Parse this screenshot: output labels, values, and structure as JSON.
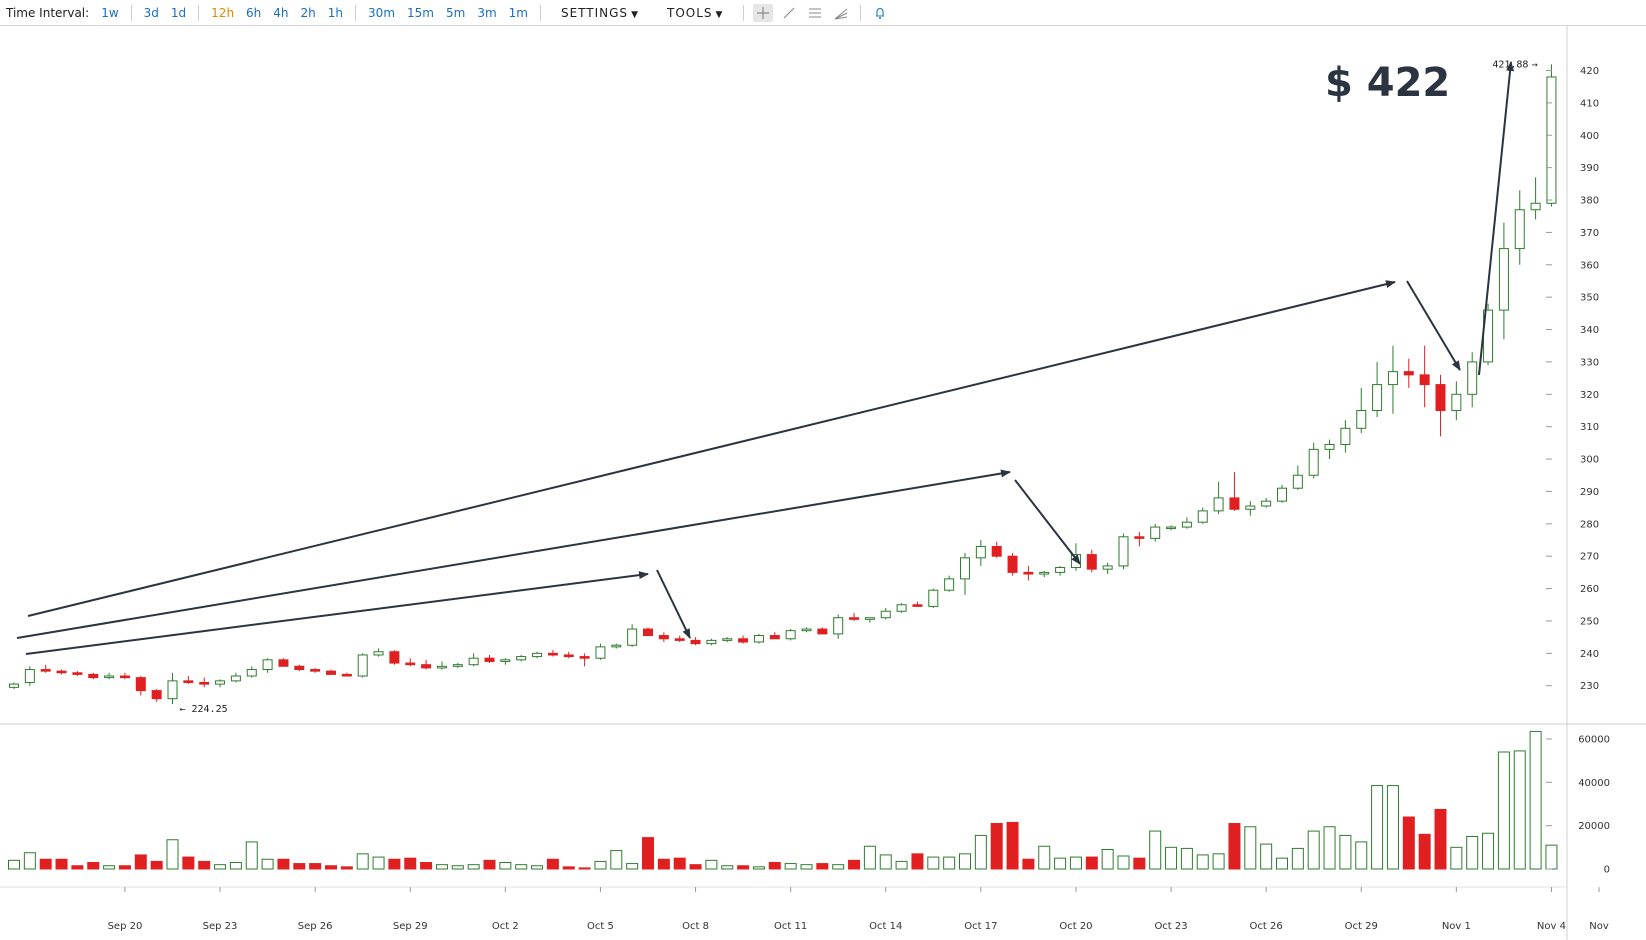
{
  "toolbar": {
    "interval_label": "Time Interval:",
    "intervals": [
      "1w",
      "3d",
      "1d",
      "12h",
      "6h",
      "4h",
      "2h",
      "1h",
      "30m",
      "15m",
      "5m",
      "3m",
      "1m"
    ],
    "active_interval": "12h",
    "settings_label": "SETTINGS",
    "tools_label": "TOOLS"
  },
  "colors": {
    "up": "#2e7d2e",
    "down": "#e02020",
    "arrow": "#2b3440",
    "link": "#1a6fbf",
    "active": "#e08a00"
  },
  "annotation": {
    "big_price": "$ 422"
  },
  "markers": {
    "high_label": "421.88",
    "low_label": "224.25"
  },
  "chart_data": {
    "type": "candlestick",
    "interval": "12h",
    "price_axis": {
      "min": 222,
      "max": 422,
      "ticks": [
        230,
        240,
        250,
        260,
        270,
        280,
        290,
        300,
        310,
        320,
        330,
        340,
        350,
        360,
        370,
        380,
        390,
        400,
        410,
        420
      ]
    },
    "volume_axis": {
      "min": 0,
      "max": 65000,
      "ticks": [
        0,
        20000,
        40000,
        60000
      ],
      "tick_labels": [
        "0",
        "20000",
        "40000",
        "60000"
      ]
    },
    "x_labels": [
      {
        "label": "Sep 20",
        "i": 7
      },
      {
        "label": "Sep 23",
        "i": 13
      },
      {
        "label": "Sep 26",
        "i": 19
      },
      {
        "label": "Sep 29",
        "i": 25
      },
      {
        "label": "Oct 2",
        "i": 31
      },
      {
        "label": "Oct 5",
        "i": 37
      },
      {
        "label": "Oct 8",
        "i": 43
      },
      {
        "label": "Oct 11",
        "i": 49
      },
      {
        "label": "Oct 14",
        "i": 55
      },
      {
        "label": "Oct 17",
        "i": 61
      },
      {
        "label": "Oct 20",
        "i": 67
      },
      {
        "label": "Oct 23",
        "i": 73
      },
      {
        "label": "Oct 26",
        "i": 79
      },
      {
        "label": "Oct 29",
        "i": 85
      },
      {
        "label": "Nov 1",
        "i": 91
      },
      {
        "label": "Nov 4",
        "i": 97
      },
      {
        "label": "Nov",
        "i": 100
      }
    ],
    "ohlc": [
      [
        229.5,
        231,
        229,
        230.5
      ],
      [
        231,
        236,
        230,
        235
      ],
      [
        235,
        236.5,
        234,
        234.5
      ],
      [
        234.5,
        235,
        233.5,
        234
      ],
      [
        234,
        234.5,
        233,
        233.5
      ],
      [
        233.5,
        234,
        232,
        232.5
      ],
      [
        232.5,
        234,
        232,
        233
      ],
      [
        233,
        234,
        232,
        232.5
      ],
      [
        232.5,
        233,
        227,
        228.5
      ],
      [
        228.5,
        229,
        225,
        226
      ],
      [
        226,
        234,
        224.3,
        231.5
      ],
      [
        231.5,
        233,
        230.5,
        231
      ],
      [
        231,
        232.5,
        229.5,
        230.5
      ],
      [
        230.5,
        232,
        229.5,
        231.5
      ],
      [
        231.5,
        234,
        231,
        233
      ],
      [
        233,
        236,
        232.5,
        235
      ],
      [
        235,
        238.5,
        234,
        238
      ],
      [
        238,
        238.5,
        236,
        236
      ],
      [
        236,
        236.5,
        234.5,
        235
      ],
      [
        235,
        235.5,
        234,
        234.5
      ],
      [
        234.5,
        235,
        233.5,
        233.5
      ],
      [
        233.5,
        234,
        233,
        233
      ],
      [
        233,
        240,
        232.5,
        239.5
      ],
      [
        239.5,
        241.5,
        239,
        240.5
      ],
      [
        240.5,
        241,
        236.5,
        237
      ],
      [
        237,
        238.5,
        236,
        236.5
      ],
      [
        236.5,
        238,
        235,
        235.5
      ],
      [
        235.5,
        237.5,
        235,
        236
      ],
      [
        236,
        237,
        235.5,
        236.5
      ],
      [
        236.5,
        240,
        236,
        238.5
      ],
      [
        238.5,
        239.5,
        237,
        237.5
      ],
      [
        237.5,
        238.5,
        236.5,
        238
      ],
      [
        238,
        239.5,
        237.5,
        239
      ],
      [
        239,
        240.5,
        238.5,
        240
      ],
      [
        240,
        241,
        239,
        239.5
      ],
      [
        239.5,
        240.5,
        238.5,
        239
      ],
      [
        239,
        240,
        236,
        238.5
      ],
      [
        238.5,
        243,
        238,
        242
      ],
      [
        242,
        243,
        241.5,
        242.5
      ],
      [
        242.5,
        249,
        242,
        247.5
      ],
      [
        247.5,
        248,
        246,
        245.5
      ],
      [
        245.5,
        246.5,
        243.5,
        244.5
      ],
      [
        244.5,
        245.5,
        243.5,
        244
      ],
      [
        244,
        245,
        242.5,
        243
      ],
      [
        243,
        244.5,
        242.5,
        244
      ],
      [
        244,
        245,
        243.5,
        244.5
      ],
      [
        244.5,
        245.5,
        243,
        243.5
      ],
      [
        243.5,
        246,
        243,
        245.5
      ],
      [
        245.5,
        246.5,
        244.5,
        244.5
      ],
      [
        244.5,
        247.5,
        244,
        247
      ],
      [
        247,
        248,
        246.5,
        247.5
      ],
      [
        247.5,
        248,
        246,
        246
      ],
      [
        246,
        252,
        244.5,
        251
      ],
      [
        251,
        252.5,
        250,
        250.5
      ],
      [
        250.5,
        251,
        249.5,
        251
      ],
      [
        251,
        254,
        250.5,
        253
      ],
      [
        253,
        255.5,
        252.5,
        255
      ],
      [
        255,
        256,
        254.5,
        254.5
      ],
      [
        254.5,
        260,
        254,
        259.5
      ],
      [
        259.5,
        264,
        259,
        263
      ],
      [
        263,
        271,
        258,
        269.5
      ],
      [
        269.5,
        275,
        267,
        273
      ],
      [
        273,
        274.5,
        269.5,
        270
      ],
      [
        270,
        271,
        264,
        265
      ],
      [
        265,
        267,
        262.5,
        264.5
      ],
      [
        264.5,
        265.5,
        263.5,
        265
      ],
      [
        265,
        267,
        264,
        266.5
      ],
      [
        266.5,
        274,
        265.5,
        270.5
      ],
      [
        270.5,
        272,
        265,
        266
      ],
      [
        266,
        268,
        264.5,
        267
      ],
      [
        267,
        277,
        266,
        276
      ],
      [
        276,
        277.5,
        273,
        275.5
      ],
      [
        275.5,
        280,
        274.5,
        279
      ],
      [
        279,
        279.5,
        278,
        279
      ],
      [
        279,
        282,
        278.5,
        280.5
      ],
      [
        280.5,
        285,
        280,
        284
      ],
      [
        284,
        293,
        283,
        288
      ],
      [
        288,
        296,
        284,
        284.5
      ],
      [
        284.5,
        287,
        282.5,
        285.5
      ],
      [
        285.5,
        288,
        285,
        287
      ],
      [
        287,
        292,
        286.5,
        291
      ],
      [
        291,
        298,
        290.5,
        295
      ],
      [
        295,
        305,
        294,
        303
      ],
      [
        303,
        306,
        300,
        304.5
      ],
      [
        304.5,
        312,
        302,
        309.5
      ],
      [
        309.5,
        322,
        308,
        315
      ],
      [
        315,
        330,
        313,
        323
      ],
      [
        323,
        335,
        314,
        327
      ],
      [
        327,
        331,
        322,
        326
      ],
      [
        326,
        335,
        316,
        323
      ],
      [
        323,
        326,
        307,
        315
      ],
      [
        315,
        324,
        312,
        320
      ],
      [
        320,
        333,
        316,
        330
      ],
      [
        330,
        348,
        329,
        346
      ],
      [
        346,
        373,
        337,
        365
      ],
      [
        365,
        383,
        360,
        377
      ],
      [
        377,
        387,
        374,
        379
      ],
      [
        379,
        421.9,
        378,
        418
      ]
    ],
    "volume": [
      4000,
      7500,
      4500,
      4500,
      1500,
      3000,
      1500,
      1500,
      6500,
      3500,
      13500,
      5500,
      3500,
      2000,
      3000,
      12500,
      4500,
      4500,
      2500,
      2500,
      1500,
      1000,
      7000,
      5500,
      4500,
      5000,
      3000,
      2000,
      1500,
      2000,
      4000,
      3000,
      2000,
      1500,
      4500,
      1000,
      500,
      3500,
      8500,
      2500,
      14500,
      4500,
      5000,
      2000,
      4000,
      1500,
      1500,
      1000,
      3000,
      2500,
      2000,
      2500,
      2000,
      4000,
      10500,
      6500,
      3500,
      7000,
      5500,
      5500,
      7000,
      15500,
      21000,
      21500,
      4500,
      10500,
      5000,
      5500,
      5500,
      9000,
      6000,
      5000,
      17500,
      10000,
      9500,
      6500,
      7000,
      21000,
      19500,
      11500,
      5000,
      9500,
      17500,
      19500,
      15500,
      12500,
      38500,
      38500,
      24000,
      16000,
      27500,
      10000,
      15000,
      16500,
      54000,
      54500,
      63500,
      11000
    ]
  }
}
